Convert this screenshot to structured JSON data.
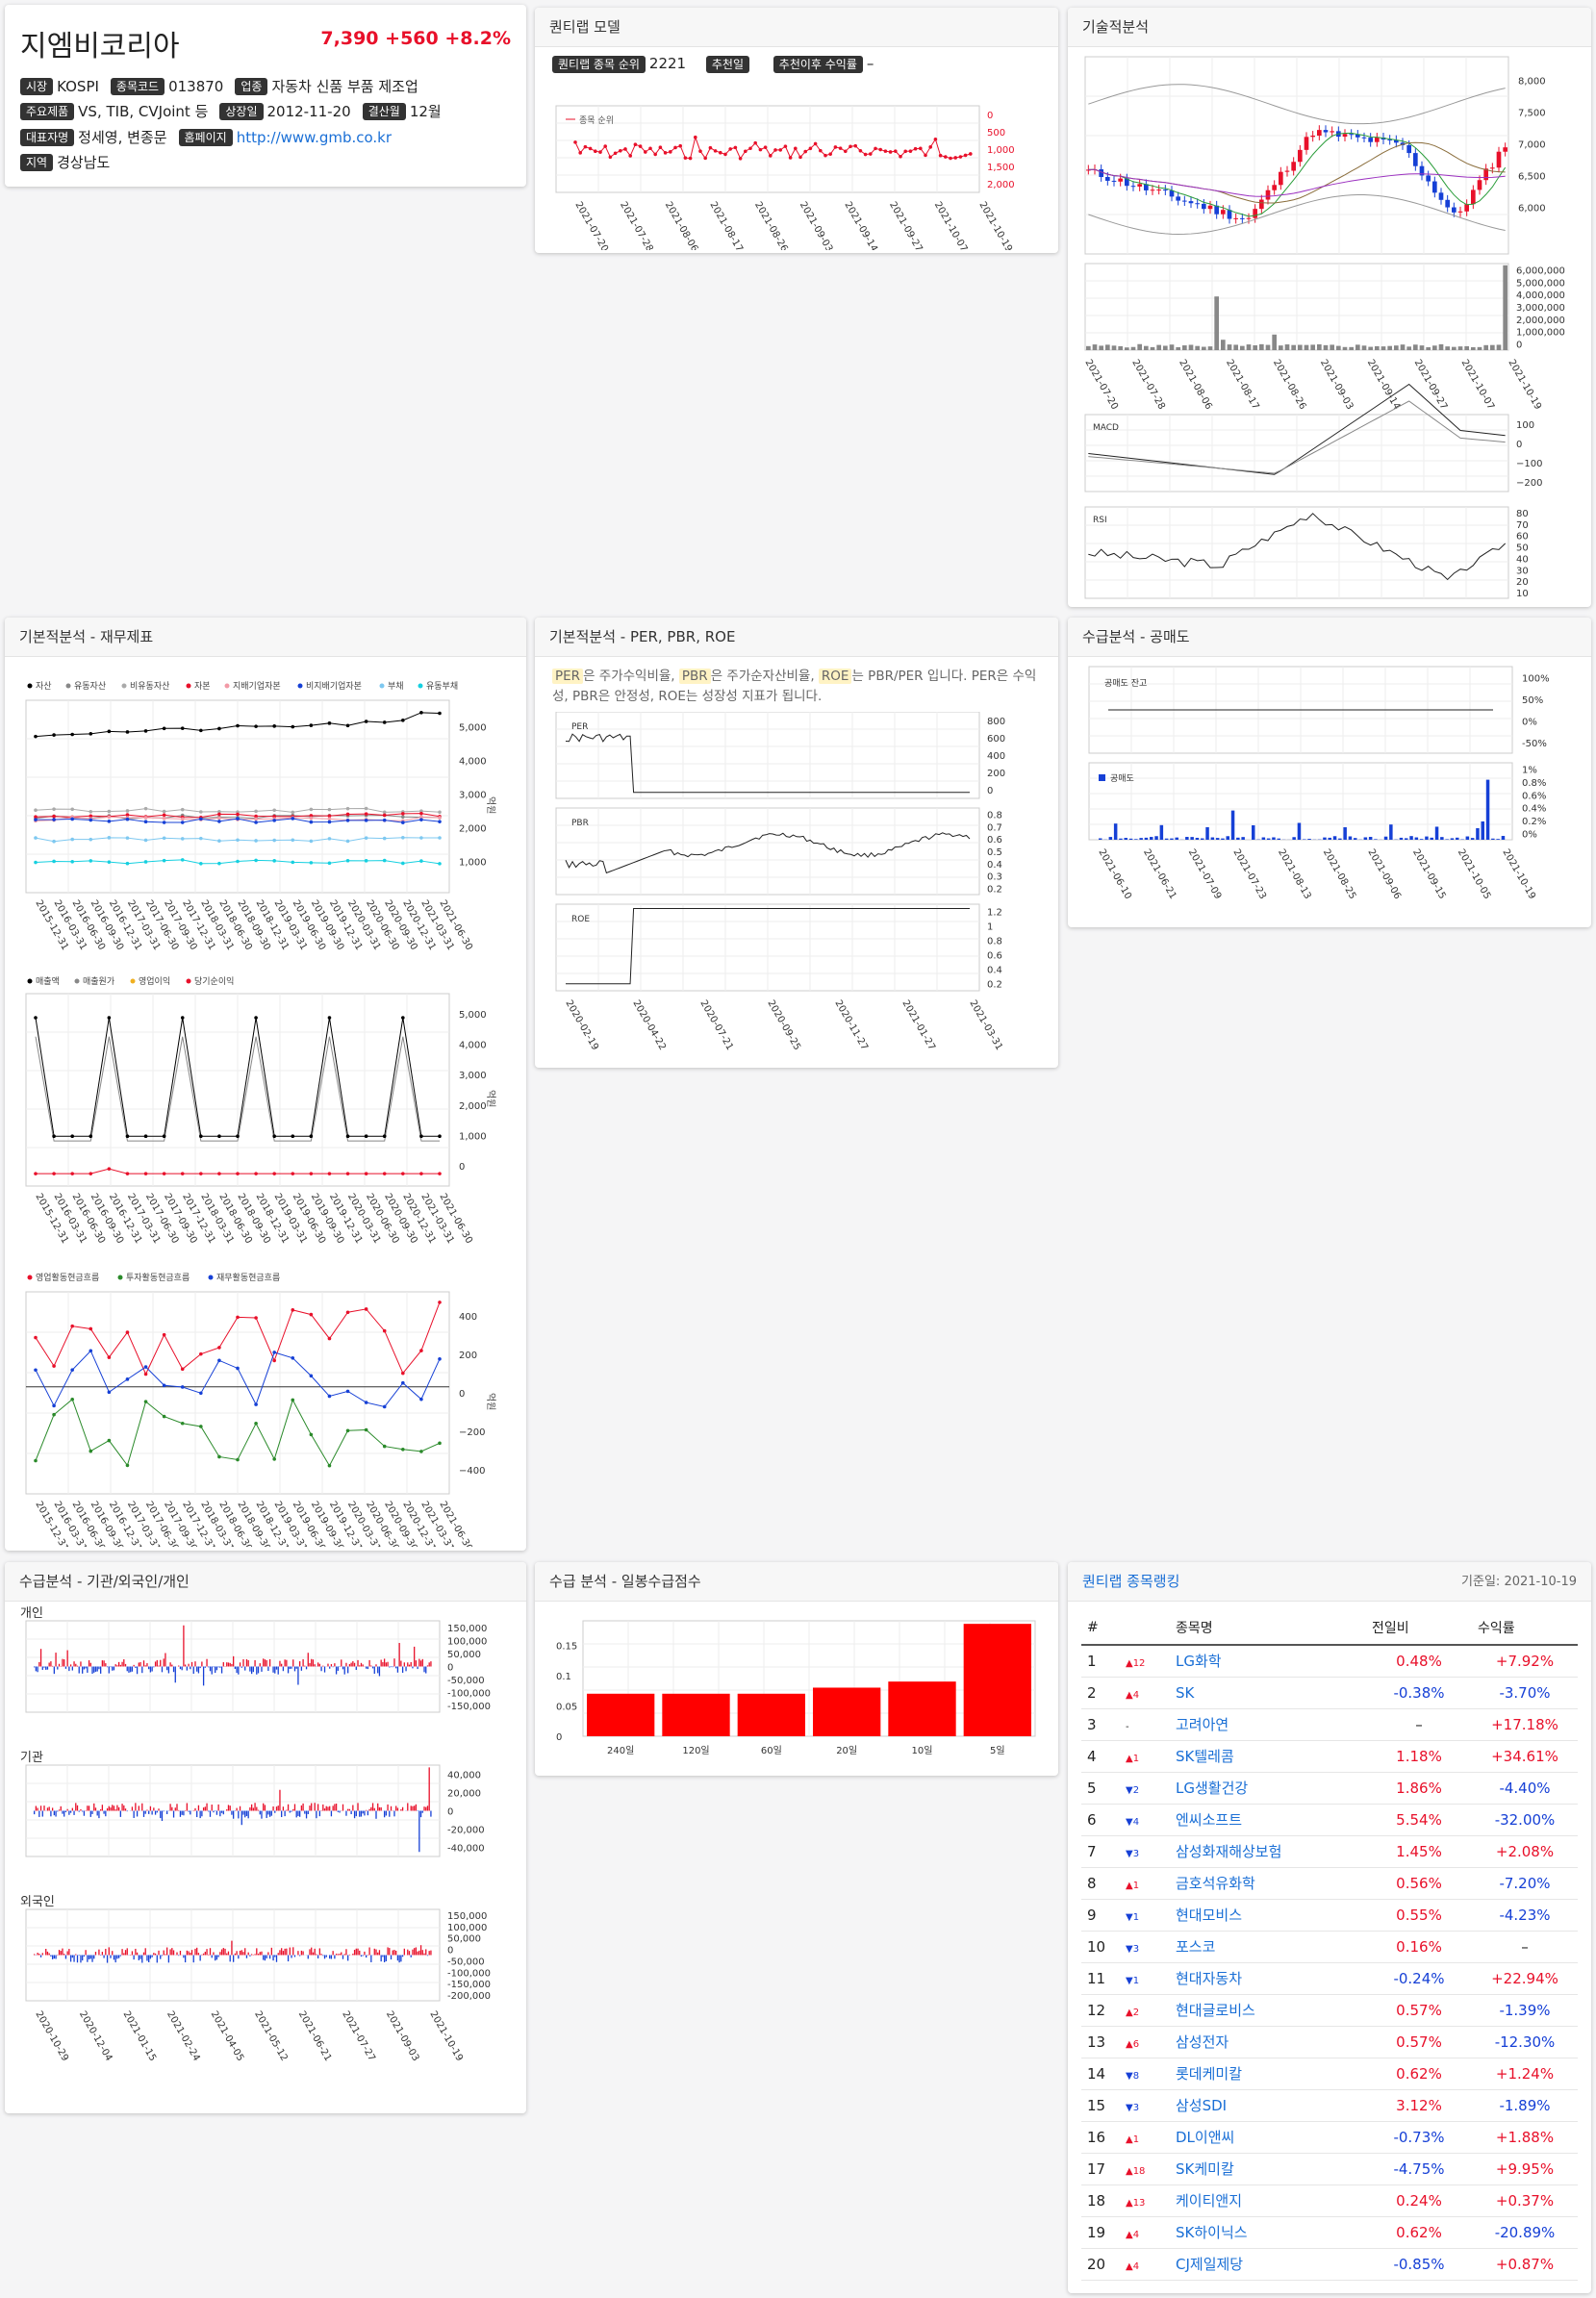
{
  "stock": {
    "name": "지엠비코리아",
    "price": "7,390",
    "change": "+560",
    "pct": "+8.2%",
    "rows": [
      [
        [
          "시장",
          "KOSPI"
        ],
        [
          "종목코드",
          "013870"
        ],
        [
          "업종",
          "자동차 신품 부품 제조업"
        ]
      ],
      [
        [
          "주요제품",
          "VS, TIB, CVJoint 등"
        ],
        [
          "상장일",
          "2012-11-20"
        ],
        [
          "결산월",
          "12월"
        ]
      ],
      [
        [
          "대표자명",
          "정세영, 변종문"
        ],
        [
          "홈페이지",
          "http://www.gmb.co.kr"
        ]
      ],
      [
        [
          "지역",
          "경상남도"
        ]
      ]
    ]
  },
  "quant": {
    "title": "퀀티랩 모델",
    "rank_label": "퀀티랩 종목 순위",
    "rank": "2221",
    "rec_label": "추천일",
    "rec_value": "",
    "ret_label": "추천이후 수익률",
    "ret_value": "–",
    "legend": "종목 순위",
    "yticks": [
      "0",
      "500",
      "1,000",
      "1,500",
      "2,000"
    ],
    "dates": [
      "2021-07-20",
      "2021-07-28",
      "2021-08-06",
      "2021-08-17",
      "2021-08-26",
      "2021-09-03",
      "2021-09-14",
      "2021-09-27",
      "2021-10-07",
      "2021-10-19"
    ]
  },
  "tech": {
    "title": "기술적분석",
    "price_ticks": [
      "8,000",
      "7,500",
      "7,000",
      "6,500",
      "6,000"
    ],
    "vol_ticks": [
      "6,000,000",
      "5,000,000",
      "4,000,000",
      "3,000,000",
      "2,000,000",
      "1,000,000",
      "0"
    ],
    "macd_label": "MACD",
    "macd_ticks": [
      "100",
      "0",
      "−100",
      "−200"
    ],
    "rsi_label": "RSI",
    "rsi_ticks": [
      "80",
      "70",
      "60",
      "50",
      "40",
      "30",
      "20",
      "10"
    ],
    "dates": [
      "2021-07-20",
      "2021-07-28",
      "2021-08-06",
      "2021-08-17",
      "2021-08-26",
      "2021-09-03",
      "2021-09-14",
      "2021-09-27",
      "2021-10-07",
      "2021-10-19"
    ]
  },
  "fund": {
    "title": "기본적분석 - 재무제표",
    "unit": "억원",
    "legend1": [
      "자산",
      "유동자산",
      "비유동자산",
      "자본",
      "지배기업자본",
      "비지배기업자본",
      "부채",
      "유동부채"
    ],
    "ticks1": [
      "5,000",
      "4,000",
      "3,000",
      "2,000",
      "1,000"
    ],
    "legend2": [
      "매출액",
      "매출원가",
      "영업이익",
      "당기순이익"
    ],
    "ticks2": [
      "5,000",
      "4,000",
      "3,000",
      "2,000",
      "1,000",
      "0"
    ],
    "legend3": [
      "영업활동현금흐름",
      "투자활동현금흐름",
      "재무활동현금흐름"
    ],
    "ticks3": [
      "400",
      "200",
      "0",
      "−200",
      "−400"
    ],
    "quarters": [
      "2015-12-31",
      "2016-03-31",
      "2016-06-30",
      "2016-09-30",
      "2016-12-31",
      "2017-03-31",
      "2017-06-30",
      "2017-09-30",
      "2017-12-31",
      "2018-03-31",
      "2018-06-30",
      "2018-09-30",
      "2018-12-31",
      "2019-03-31",
      "2019-06-30",
      "2019-09-30",
      "2019-12-31",
      "2020-03-31",
      "2020-06-30",
      "2020-09-30",
      "2020-12-31",
      "2021-03-31",
      "2021-06-30"
    ]
  },
  "ratio": {
    "title": "기본적분석 - PER, PBR, ROE",
    "desc": [
      [
        "PER",
        "은 주가수익비율, "
      ],
      [
        "PBR",
        "은 주가순자산비율, "
      ],
      [
        "ROE",
        "는 PBR/PER 입니다. PER은 수익성, PBR은 안정성, ROE는 성장성 지표가 됩니다."
      ]
    ],
    "per_ticks": [
      "800",
      "600",
      "400",
      "200",
      "0"
    ],
    "pbr_ticks": [
      "0.8",
      "0.7",
      "0.6",
      "0.5",
      "0.4",
      "0.3",
      "0.2"
    ],
    "roe_ticks": [
      "1.2",
      "1",
      "0.8",
      "0.6",
      "0.4",
      "0.2"
    ],
    "labels": [
      "PER",
      "PBR",
      "ROE"
    ],
    "dates": [
      "2020-02-19",
      "2020-04-22",
      "2020-07-21",
      "2020-09-25",
      "2020-11-27",
      "2021-01-27",
      "2021-03-31"
    ]
  },
  "short": {
    "title": "수급분석 - 공매도",
    "label1": "공매도 잔고",
    "label2": "공매도",
    "ticks1": [
      "100%",
      "50%",
      "0%",
      "-50%"
    ],
    "ticks2": [
      "1%",
      "0.8%",
      "0.6%",
      "0.4%",
      "0.2%",
      "0%"
    ],
    "dates": [
      "2021-06-10",
      "2021-06-21",
      "2021-07-09",
      "2021-07-23",
      "2021-08-13",
      "2021-08-25",
      "2021-09-06",
      "2021-09-15",
      "2021-10-05",
      "2021-10-19"
    ]
  },
  "flow": {
    "title": "수급분석 - 기관/외국인/개인",
    "labels": [
      "개인",
      "기관",
      "외국인"
    ],
    "ticks_ind": [
      "150,000",
      "100,000",
      "50,000",
      "0",
      "-50,000",
      "-100,000",
      "-150,000"
    ],
    "ticks_ins": [
      "40,000",
      "20,000",
      "0",
      "-20,000",
      "-40,000"
    ],
    "ticks_for": [
      "150,000",
      "100,000",
      "50,000",
      "0",
      "-50,000",
      "-100,000",
      "-150,000",
      "-200,000"
    ],
    "dates": [
      "2020-10-29",
      "2020-12-04",
      "2021-01-15",
      "2021-02-24",
      "2021-04-05",
      "2021-05-12",
      "2021-06-21",
      "2021-07-27",
      "2021-09-03",
      "2021-10-19"
    ]
  },
  "score": {
    "title": "수급 분석 - 일봉수급점수",
    "chart_data": {
      "type": "bar",
      "categories": [
        "240일",
        "120일",
        "60일",
        "20일",
        "10일",
        "5일"
      ],
      "values": [
        0.07,
        0.07,
        0.07,
        0.08,
        0.09,
        0.185
      ],
      "ylim": [
        0,
        0.19
      ],
      "yticks": [
        "0",
        "0.05",
        "0.1",
        "0.15"
      ]
    }
  },
  "ranking": {
    "title": "퀀티랩 종목랭킹",
    "date": "기준일: 2021-10-19",
    "headers": [
      "#",
      "종목명",
      "전일비",
      "수익률"
    ],
    "rows": [
      {
        "n": "1",
        "chg": "▲12",
        "dir": "up",
        "name": "LG화학",
        "d": "0.48%",
        "r": "+7.92%",
        "dc": "up",
        "rc": "up"
      },
      {
        "n": "2",
        "chg": "▲4",
        "dir": "up",
        "name": "SK",
        "d": "-0.38%",
        "r": "-3.70%",
        "dc": "dn",
        "rc": "dn"
      },
      {
        "n": "3",
        "chg": "-",
        "dir": "",
        "name": "고려아연",
        "d": "–",
        "r": "+17.18%",
        "dc": "",
        "rc": "up"
      },
      {
        "n": "4",
        "chg": "▲1",
        "dir": "up",
        "name": "SK텔레콤",
        "d": "1.18%",
        "r": "+34.61%",
        "dc": "up",
        "rc": "up"
      },
      {
        "n": "5",
        "chg": "▼2",
        "dir": "dn",
        "name": "LG생활건강",
        "d": "1.86%",
        "r": "-4.40%",
        "dc": "up",
        "rc": "dn"
      },
      {
        "n": "6",
        "chg": "▼4",
        "dir": "dn",
        "name": "엔씨소프트",
        "d": "5.54%",
        "r": "-32.00%",
        "dc": "up",
        "rc": "dn"
      },
      {
        "n": "7",
        "chg": "▼3",
        "dir": "dn",
        "name": "삼성화재해상보험",
        "d": "1.45%",
        "r": "+2.08%",
        "dc": "up",
        "rc": "up"
      },
      {
        "n": "8",
        "chg": "▲1",
        "dir": "up",
        "name": "금호석유화학",
        "d": "0.56%",
        "r": "-7.20%",
        "dc": "up",
        "rc": "dn"
      },
      {
        "n": "9",
        "chg": "▼1",
        "dir": "dn",
        "name": "현대모비스",
        "d": "0.55%",
        "r": "-4.23%",
        "dc": "up",
        "rc": "dn"
      },
      {
        "n": "10",
        "chg": "▼3",
        "dir": "dn",
        "name": "포스코",
        "d": "0.16%",
        "r": "–",
        "dc": "up",
        "rc": ""
      },
      {
        "n": "11",
        "chg": "▼1",
        "dir": "dn",
        "name": "현대자동차",
        "d": "-0.24%",
        "r": "+22.94%",
        "dc": "dn",
        "rc": "up"
      },
      {
        "n": "12",
        "chg": "▲2",
        "dir": "up",
        "name": "현대글로비스",
        "d": "0.57%",
        "r": "-1.39%",
        "dc": "up",
        "rc": "dn"
      },
      {
        "n": "13",
        "chg": "▲6",
        "dir": "up",
        "name": "삼성전자",
        "d": "0.57%",
        "r": "-12.30%",
        "dc": "up",
        "rc": "dn"
      },
      {
        "n": "14",
        "chg": "▼8",
        "dir": "dn",
        "name": "롯데케미칼",
        "d": "0.62%",
        "r": "+1.24%",
        "dc": "up",
        "rc": "up"
      },
      {
        "n": "15",
        "chg": "▼3",
        "dir": "dn",
        "name": "삼성SDI",
        "d": "3.12%",
        "r": "-1.89%",
        "dc": "up",
        "rc": "dn"
      },
      {
        "n": "16",
        "chg": "▲1",
        "dir": "up",
        "name": "DL이앤씨",
        "d": "-0.73%",
        "r": "+1.88%",
        "dc": "dn",
        "rc": "up"
      },
      {
        "n": "17",
        "chg": "▲18",
        "dir": "up",
        "name": "SK케미칼",
        "d": "-4.75%",
        "r": "+9.95%",
        "dc": "dn",
        "rc": "up"
      },
      {
        "n": "18",
        "chg": "▲13",
        "dir": "up",
        "name": "케이티앤지",
        "d": "0.24%",
        "r": "+0.37%",
        "dc": "up",
        "rc": "up"
      },
      {
        "n": "19",
        "chg": "▲4",
        "dir": "up",
        "name": "SK하이닉스",
        "d": "0.62%",
        "r": "-20.89%",
        "dc": "up",
        "rc": "dn"
      },
      {
        "n": "20",
        "chg": "▲4",
        "dir": "up",
        "name": "CJ제일제당",
        "d": "-0.85%",
        "r": "+0.87%",
        "dc": "dn",
        "rc": "up"
      }
    ]
  }
}
